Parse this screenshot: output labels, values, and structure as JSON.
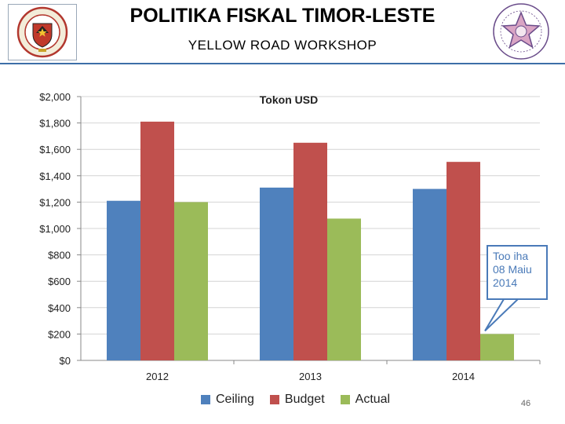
{
  "header": {
    "title": "POLITIKA FISKAL TIMOR-LESTE",
    "subtitle": "YELLOW ROAD WORKSHOP",
    "left_logo": "coat-of-arms",
    "right_logo": "star-seal"
  },
  "chart_data": {
    "type": "bar",
    "title": "Tokon USD",
    "categories": [
      "2012",
      "2013",
      "2014"
    ],
    "series": [
      {
        "name": "Ceiling",
        "color": "#4f81bd",
        "values": [
          1210,
          1310,
          1300
        ]
      },
      {
        "name": "Budget",
        "color": "#c0504d",
        "values": [
          1810,
          1650,
          1505
        ]
      },
      {
        "name": "Actual",
        "color": "#9bbb59",
        "values": [
          1200,
          1075,
          200
        ]
      }
    ],
    "ylim": [
      0,
      2000
    ],
    "yticks": [
      0,
      200,
      400,
      600,
      800,
      1000,
      1200,
      1400,
      1600,
      1800,
      2000
    ],
    "ytick_labels": [
      "$0",
      "$200",
      "$400",
      "$600",
      "$800",
      "$1,000",
      "$1,200",
      "$1,400",
      "$1,600",
      "$1,800",
      "$2,000"
    ],
    "grid": true,
    "legend_position": "bottom",
    "annotation": {
      "lines": [
        "Too iha",
        "08 Maiu",
        "2014"
      ],
      "target": {
        "category": "2014",
        "series": "Actual"
      }
    }
  },
  "footer": {
    "page_number": "46"
  }
}
